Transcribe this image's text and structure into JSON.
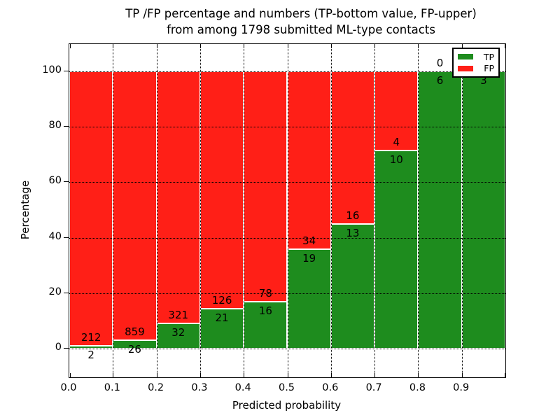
{
  "title": {
    "line1": "TP /FP percentage and numbers (TP-bottom value, FP-upper)",
    "line2": "from among 1798 submitted ML-type contacts"
  },
  "chart_data": {
    "type": "bar",
    "stacked": true,
    "title": "TP /FP percentage and numbers (TP-bottom value, FP-upper)\nfrom among 1798 submitted ML-type contacts",
    "xlabel": "Predicted probability",
    "ylabel": "Percentage",
    "total_contacts": 1798,
    "bins": [
      "0.0-0.1",
      "0.1-0.2",
      "0.2-0.3",
      "0.3-0.4",
      "0.4-0.5",
      "0.5-0.6",
      "0.6-0.7",
      "0.7-0.8",
      "0.8-0.9",
      "0.9-1.0"
    ],
    "series": [
      {
        "name": "TP",
        "color": "#1e8c1e",
        "counts": [
          2,
          26,
          32,
          21,
          16,
          19,
          13,
          10,
          6,
          3
        ],
        "percent": [
          0.93,
          2.94,
          9.07,
          14.29,
          17.02,
          35.85,
          44.83,
          71.43,
          100.0,
          100.0
        ]
      },
      {
        "name": "FP",
        "color": "#ff1f17",
        "counts": [
          212,
          859,
          321,
          126,
          78,
          34,
          16,
          4,
          0,
          0
        ],
        "percent": [
          99.07,
          97.06,
          90.93,
          85.71,
          82.98,
          64.15,
          55.17,
          28.57,
          0.0,
          0.0
        ]
      }
    ],
    "x_ticks": [
      "0.0",
      "0.1",
      "0.2",
      "0.3",
      "0.4",
      "0.5",
      "0.6",
      "0.7",
      "0.8",
      "0.9"
    ],
    "y_ticks": [
      0,
      20,
      40,
      60,
      80,
      100
    ],
    "xlim": [
      0.0,
      1.0
    ],
    "ylim": [
      -10,
      110
    ],
    "grid": "dotted both axes",
    "legend_position": "upper right",
    "legend": [
      "TP",
      "FP"
    ],
    "annotation_note": "TP count printed below segment boundary, FP count printed above it"
  }
}
